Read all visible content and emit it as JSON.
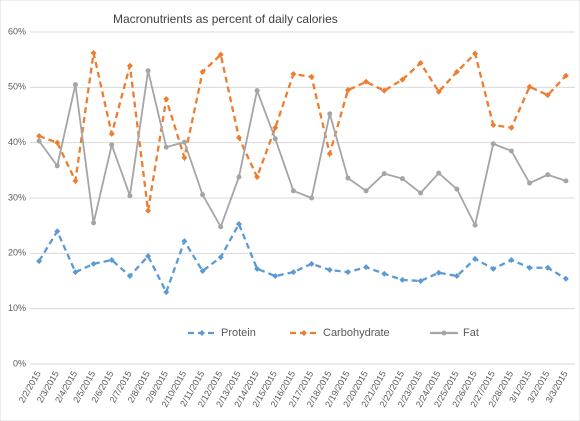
{
  "chart_data": {
    "type": "line",
    "title": "Macronutrients as percent of daily calories",
    "categories": [
      "2/2/2015",
      "2/3/2015",
      "2/4/2015",
      "2/5/2015",
      "2/6/2015",
      "2/7/2015",
      "2/8/2015",
      "2/9/2015",
      "2/10/2015",
      "2/11/2015",
      "2/12/2015",
      "2/13/2015",
      "2/14/2015",
      "2/15/2015",
      "2/16/2015",
      "2/17/2015",
      "2/18/2015",
      "2/19/2015",
      "2/20/2015",
      "2/21/2015",
      "2/22/2015",
      "2/23/2015",
      "2/24/2015",
      "2/25/2015",
      "2/26/2015",
      "2/27/2015",
      "2/28/2015",
      "3/1/2015",
      "3/2/2015",
      "3/3/2015"
    ],
    "series": [
      {
        "name": "Protein",
        "color": "#5b9bd5",
        "values": [
          18.6,
          24,
          16.6,
          18.1,
          18.8,
          15.9,
          19.5,
          13,
          22.2,
          16.8,
          19.3,
          25.3,
          17.2,
          15.9,
          16.6,
          18.1,
          17,
          16.6,
          17.5,
          16.3,
          15.2,
          15,
          16.5,
          15.9,
          19,
          17.2,
          18.8,
          17.4,
          17.4,
          15.4
        ]
      },
      {
        "name": "Carbohydrate",
        "color": "#ed7d31",
        "values": [
          41.2,
          40,
          33.1,
          56.2,
          41.6,
          53.9,
          27.7,
          47.9,
          37.3,
          52.8,
          55.9,
          40.9,
          33.8,
          42.7,
          52.4,
          51.9,
          38,
          49.5,
          51,
          49.4,
          51.4,
          54.4,
          49.2,
          52.8,
          56.1,
          43.2,
          42.7,
          50.1,
          48.6,
          52.1
        ]
      },
      {
        "name": "Fat",
        "color": "#a5a5a5",
        "values": [
          40.3,
          35.8,
          50.5,
          25.5,
          39.6,
          30.4,
          53,
          39.2,
          40.1,
          30.6,
          24.8,
          33.8,
          49.4,
          40.7,
          31.3,
          30,
          45.2,
          33.6,
          31.3,
          34.4,
          33.5,
          30.9,
          34.5,
          31.6,
          25.1,
          39.8,
          38.5,
          32.7,
          34.2,
          33.1
        ]
      }
    ],
    "ylim": [
      0,
      60
    ],
    "yticks": [
      {
        "value": 0,
        "label": "0%"
      },
      {
        "value": 10,
        "label": "10%"
      },
      {
        "value": 20,
        "label": "20%"
      },
      {
        "value": 30,
        "label": "30%"
      },
      {
        "value": 40,
        "label": "40%"
      },
      {
        "value": 50,
        "label": "50%"
      },
      {
        "value": 60,
        "label": "60%"
      }
    ],
    "grid": true,
    "legend": "bottom"
  }
}
